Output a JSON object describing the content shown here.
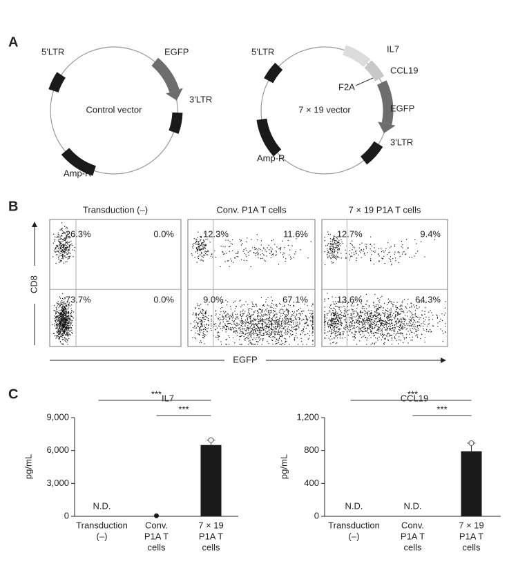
{
  "panels": {
    "a": "A",
    "b": "B",
    "c": "C"
  },
  "plasmids": [
    {
      "title": "Control vector",
      "labels": [
        "5'LTR",
        "EGFP",
        "3'LTR",
        "Amp-R"
      ]
    },
    {
      "title": "7 × 19 vector",
      "labels": [
        "5'LTR",
        "IL7",
        "CCL19",
        "F2A",
        "EGFP",
        "3'LTR",
        "Amp-R"
      ]
    }
  ],
  "flow": {
    "x_label": "EGFP",
    "y_label": "CD8",
    "plots": [
      {
        "title": "Transduction (–)",
        "quadrants": [
          "26.3%",
          "0.0%",
          "73.7%",
          "0.0%"
        ]
      },
      {
        "title": "Conv. P1A T cells",
        "quadrants": [
          "12.3%",
          "11.6%",
          "9.0%",
          "67.1%"
        ]
      },
      {
        "title": "7 × 19 P1A T cells",
        "quadrants": [
          "12.7%",
          "9.4%",
          "13.6%",
          "64.3%"
        ]
      }
    ]
  },
  "chart_data": [
    {
      "type": "bar",
      "title": "IL7",
      "y_label": "pg/mL",
      "categories": [
        [
          "Transduction",
          "(–)"
        ],
        [
          "Conv.",
          "P1A T",
          "cells"
        ],
        [
          "7 × 19",
          "P1A T",
          "cells"
        ]
      ],
      "values": [
        null,
        50,
        6500
      ],
      "value_labels": [
        "N.D.",
        null,
        null
      ],
      "errors": [
        null,
        null,
        450
      ],
      "color": "#1a1a1a",
      "ylim": [
        0,
        9000
      ],
      "yticks": [
        0,
        {
          "value": 3000,
          "label": "3,000"
        },
        {
          "value": 6000,
          "label": "6,000"
        },
        {
          "value": 9000,
          "label": "9,000"
        }
      ],
      "significance": [
        {
          "from": 0,
          "to": 2,
          "label": "***"
        },
        {
          "from": 1,
          "to": 2,
          "label": "***"
        }
      ]
    },
    {
      "type": "bar",
      "title": "CCL19",
      "y_label": "pg/mL",
      "categories": [
        [
          "Transduction",
          "(–)"
        ],
        [
          "Conv.",
          "P1A T",
          "cells"
        ],
        [
          "7 × 19",
          "P1A T",
          "cells"
        ]
      ],
      "values": [
        null,
        null,
        790
      ],
      "value_labels": [
        "N.D.",
        "N.D.",
        null
      ],
      "errors": [
        null,
        null,
        100
      ],
      "color": "#1a1a1a",
      "ylim": [
        0,
        1200
      ],
      "yticks": [
        0,
        400,
        800,
        {
          "value": 1200,
          "label": "1,200"
        }
      ],
      "significance": [
        {
          "from": 0,
          "to": 2,
          "label": "***"
        },
        {
          "from": 1,
          "to": 2,
          "label": "***"
        }
      ]
    }
  ]
}
